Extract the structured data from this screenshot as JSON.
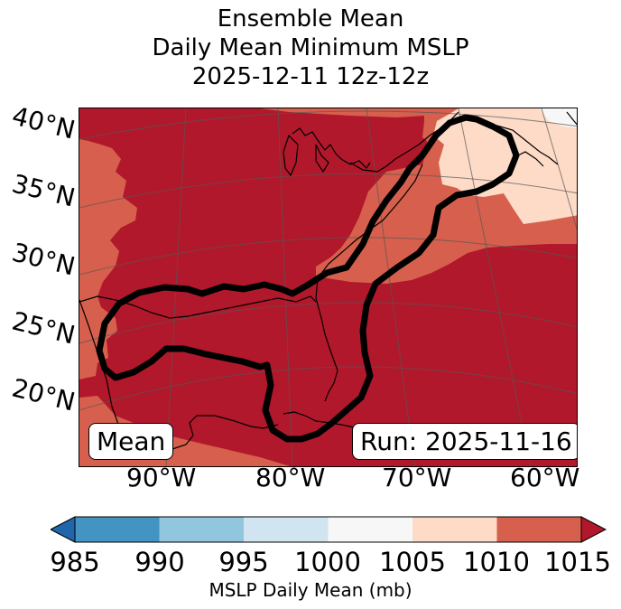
{
  "title": {
    "line1": "Ensemble Mean",
    "line2": "Daily Mean Minimum MSLP",
    "line3": "2025-12-11 12z-12z"
  },
  "map": {
    "lat_labels": [
      "40°N",
      "35°N",
      "30°N",
      "25°N",
      "20°N"
    ],
    "lon_labels": [
      "90°W",
      "80°W",
      "70°W",
      "60°W"
    ],
    "mean_label": "Mean",
    "run_label": "Run: 2025-11-16",
    "field_colors": {
      "lt1015_1010": "#d6604d",
      "ge1015": "#b2182b",
      "c1005_1010": "#fddbc7",
      "c1000_1005": "#f7f7f7"
    },
    "contour_color": "#000000"
  },
  "colorbar": {
    "ticks": [
      "985",
      "990",
      "995",
      "1000",
      "1005",
      "1010",
      "1015"
    ],
    "colors": [
      "#2166ac",
      "#4393c3",
      "#92c5de",
      "#d1e5f0",
      "#f7f7f7",
      "#fddbc7",
      "#d6604d",
      "#b2182b"
    ],
    "label": "MSLP Daily Mean (mb)"
  }
}
